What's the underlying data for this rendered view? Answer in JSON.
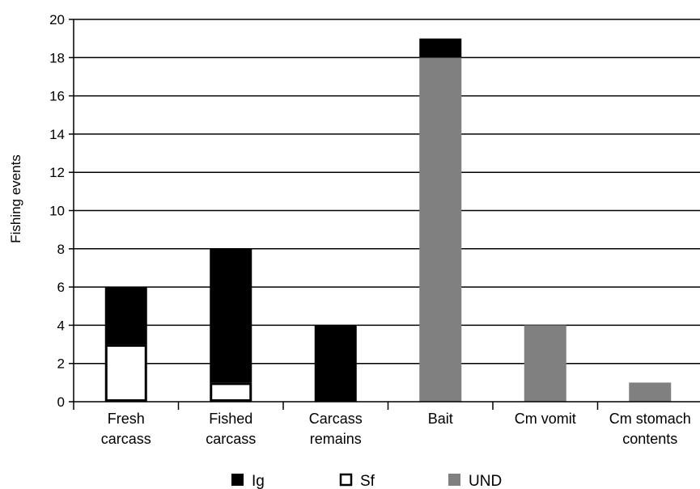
{
  "chart_data": {
    "type": "bar",
    "stacked": true,
    "ylabel": "Fishing events",
    "xlabel": "",
    "ylim": [
      0,
      20
    ],
    "yticks": [
      0,
      2,
      4,
      6,
      8,
      10,
      12,
      14,
      16,
      18,
      20
    ],
    "grid": true,
    "legend_position": "bottom",
    "categories": [
      [
        "Fresh",
        "carcass"
      ],
      [
        "Fished",
        "carcass"
      ],
      [
        "Carcass",
        "remains"
      ],
      [
        "Bait"
      ],
      [
        "Cm vomit"
      ],
      [
        "Cm stomach",
        "contents"
      ]
    ],
    "series": [
      {
        "name": "Sf",
        "fill": "#ffffff",
        "stroke": "#000000",
        "values": [
          3,
          1,
          0,
          0,
          0,
          0
        ]
      },
      {
        "name": "UND",
        "fill": "#808080",
        "stroke": "none",
        "values": [
          0,
          0,
          0,
          18,
          4,
          1
        ]
      },
      {
        "name": "Ig",
        "fill": "#000000",
        "stroke": "none",
        "values": [
          3,
          7,
          4,
          1,
          0,
          0
        ]
      }
    ],
    "legend_order": [
      "Ig",
      "Sf",
      "UND"
    ]
  }
}
